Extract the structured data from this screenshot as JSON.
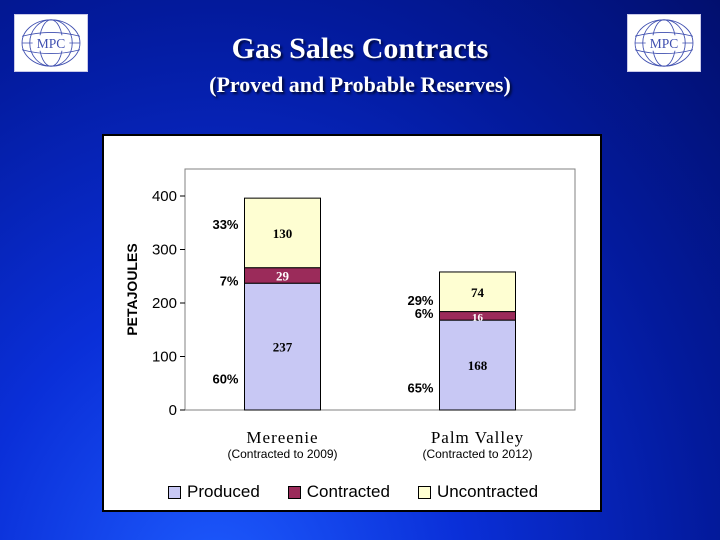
{
  "slide": {
    "title_line1": "Gas Sales Contracts",
    "title_line2": "(Proved and Probable Reserves)",
    "logo_text": "MPC"
  },
  "chart_data": {
    "type": "bar",
    "stacked": true,
    "ylabel": "PETAJOULES",
    "ylim": [
      0,
      400
    ],
    "yticks": [
      "0",
      "100",
      "200",
      "300",
      "400"
    ],
    "grid": false,
    "legend_position": "bottom",
    "categories": [
      "Mereenie",
      "Palm Valley"
    ],
    "category_subtitles": [
      "(Contracted to 2009)",
      "(Contracted to 2012)"
    ],
    "series": [
      {
        "name": "Produced",
        "color": "#c8c8f4",
        "label_color": "#000000",
        "values": [
          237,
          168
        ],
        "percent_labels": [
          "60%",
          "65%"
        ]
      },
      {
        "name": "Contracted",
        "color": "#9b2b5a",
        "label_color": "#ffffff",
        "values": [
          29,
          16
        ],
        "percent_labels": [
          "7%",
          "6%"
        ]
      },
      {
        "name": "Uncontracted",
        "color": "#fefed2",
        "label_color": "#000000",
        "values": [
          130,
          74
        ],
        "percent_labels": [
          "33%",
          "29%"
        ]
      }
    ]
  }
}
